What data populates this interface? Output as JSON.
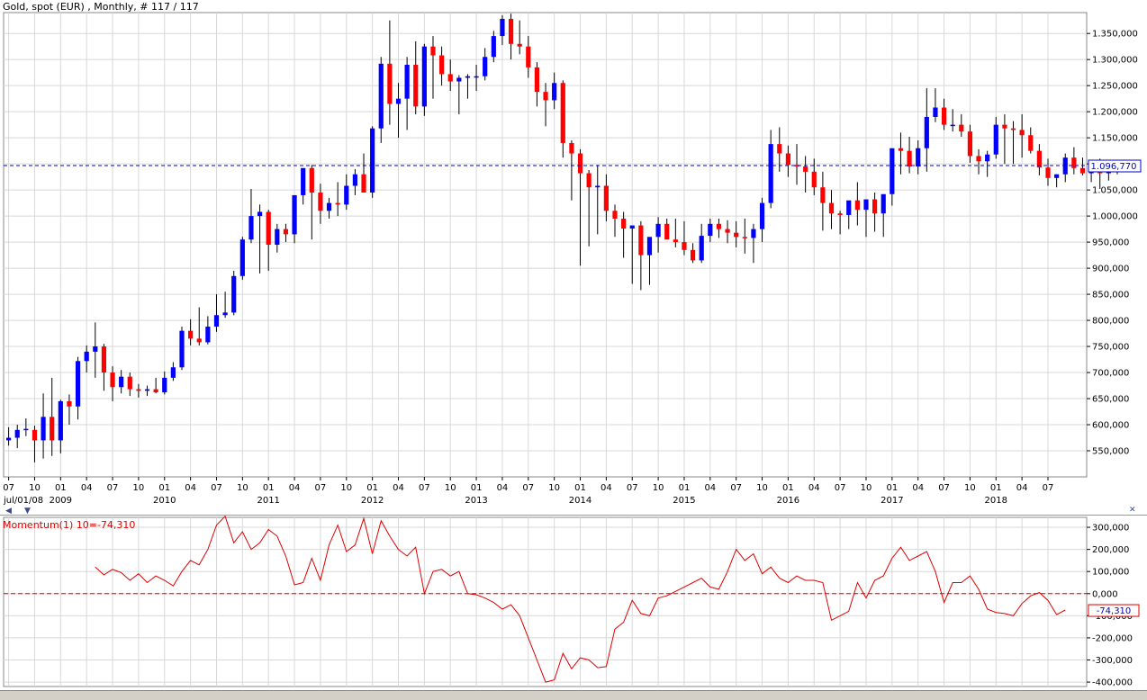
{
  "main": {
    "title": "Gold, spot (EUR) , Monthly, # 117 / 117",
    "last_price_label": "1.096,770",
    "first_date_label": "jul/01/08",
    "year_labels": [
      "2009",
      "2010",
      "2011",
      "2012",
      "2013",
      "2014",
      "2015",
      "2016",
      "2017",
      "2018"
    ],
    "month_labels": [
      "07",
      "10",
      "01",
      "04",
      "07",
      "10",
      "01",
      "04",
      "07",
      "10",
      "01",
      "04",
      "07",
      "10",
      "01",
      "04",
      "07",
      "10",
      "01",
      "04",
      "07",
      "10",
      "01",
      "04",
      "07",
      "10",
      "01",
      "04",
      "07",
      "10",
      "01",
      "04",
      "07",
      "10",
      "01",
      "04",
      "07",
      "10",
      "01",
      "04",
      "07"
    ]
  },
  "momentum": {
    "title": "Momentum(1) 10=-74,310",
    "last_value_label": "-74,310"
  },
  "colors": {
    "up": "#0000ff",
    "down": "#ff0000",
    "grid": "#d8d8d8",
    "momentum_line": "#e00000",
    "price_line": "#0000cc"
  },
  "chart_data": [
    {
      "type": "candlestick",
      "title": "Gold, spot (EUR) , Monthly, # 117 / 117",
      "ylim": [
        500000,
        1390000
      ],
      "y_ticks": [
        "550,000",
        "600,000",
        "650,000",
        "700,000",
        "750,000",
        "800,000",
        "850,000",
        "900,000",
        "950,000",
        "1.000,000",
        "1.050,000",
        "1.100,000",
        "1.150,000",
        "1.200,000",
        "1.250,000",
        "1.300,000",
        "1.350,000"
      ],
      "last_value": 1096770,
      "grid": true,
      "series": [
        {
          "ohlc": [
            [
              570,
              595,
              560,
              575
            ],
            [
              575,
              600,
              555,
              590
            ],
            [
              590,
              612,
              578,
              592
            ],
            [
              590,
              598,
              528,
              570
            ],
            [
              570,
              660,
              535,
              615
            ],
            [
              615,
              690,
              540,
              570
            ],
            [
              570,
              648,
              545,
              645
            ],
            [
              645,
              658,
              600,
              635
            ],
            [
              635,
              730,
              610,
              722
            ],
            [
              722,
              752,
              700,
              740
            ],
            [
              740,
              796,
              690,
              750
            ],
            [
              750,
              755,
              665,
              700
            ],
            [
              700,
              712,
              645,
              672
            ],
            [
              672,
              705,
              660,
              692
            ],
            [
              692,
              700,
              655,
              668
            ],
            [
              668,
              678,
              652,
              665
            ],
            [
              665,
              675,
              655,
              668
            ],
            [
              668,
              690,
              660,
              662
            ],
            [
              662,
              702,
              658,
              690
            ],
            [
              690,
              720,
              684,
              710
            ],
            [
              710,
              788,
              705,
              780
            ],
            [
              780,
              802,
              752,
              765
            ],
            [
              765,
              825,
              752,
              758
            ],
            [
              758,
              808,
              754,
              788
            ],
            [
              788,
              850,
              778,
              810
            ],
            [
              810,
              855,
              805,
              815
            ],
            [
              815,
              895,
              810,
              885
            ],
            [
              885,
              960,
              878,
              955
            ],
            [
              955,
              1052,
              948,
              1000
            ],
            [
              1000,
              1022,
              890,
              1008
            ],
            [
              1008,
              1012,
              895,
              945
            ],
            [
              945,
              985,
              930,
              975
            ],
            [
              975,
              985,
              950,
              965
            ],
            [
              965,
              1005,
              948,
              1040
            ],
            [
              1040,
              1090,
              1022,
              1092
            ],
            [
              1092,
              1098,
              955,
              1045
            ],
            [
              1045,
              1062,
              985,
              1010
            ],
            [
              1010,
              1035,
              995,
              1025
            ],
            [
              1025,
              1065,
              1000,
              1022
            ],
            [
              1022,
              1080,
              1012,
              1058
            ],
            [
              1058,
              1090,
              1040,
              1080
            ],
            [
              1080,
              1120,
              1045,
              1045
            ],
            [
              1045,
              1172,
              1035,
              1168
            ],
            [
              1168,
              1305,
              1140,
              1292
            ],
            [
              1292,
              1375,
              1175,
              1215
            ],
            [
              1215,
              1255,
              1150,
              1225
            ],
            [
              1225,
              1305,
              1165,
              1290
            ],
            [
              1290,
              1335,
              1195,
              1210
            ],
            [
              1210,
              1330,
              1192,
              1325
            ],
            [
              1325,
              1345,
              1225,
              1308
            ],
            [
              1308,
              1325,
              1250,
              1272
            ],
            [
              1272,
              1300,
              1240,
              1258
            ],
            [
              1258,
              1270,
              1195,
              1265
            ],
            [
              1265,
              1272,
              1225,
              1268
            ],
            [
              1268,
              1290,
              1240,
              1268
            ],
            [
              1268,
              1322,
              1260,
              1305
            ],
            [
              1305,
              1355,
              1295,
              1345
            ],
            [
              1345,
              1385,
              1328,
              1378
            ],
            [
              1378,
              1388,
              1300,
              1330
            ],
            [
              1330,
              1375,
              1310,
              1325
            ],
            [
              1325,
              1345,
              1265,
              1285
            ],
            [
              1285,
              1295,
              1210,
              1238
            ],
            [
              1238,
              1255,
              1172,
              1222
            ],
            [
              1222,
              1275,
              1205,
              1255
            ],
            [
              1255,
              1260,
              1112,
              1140
            ],
            [
              1140,
              1145,
              1030,
              1120
            ],
            [
              1120,
              1128,
              905,
              1082
            ],
            [
              1082,
              1088,
              942,
              1055
            ],
            [
              1055,
              1098,
              965,
              1058
            ],
            [
              1058,
              1080,
              990,
              1010
            ],
            [
              1010,
              1022,
              960,
              995
            ],
            [
              995,
              1008,
              920,
              976
            ],
            [
              976,
              980,
              870,
              982
            ],
            [
              982,
              990,
              858,
              925
            ],
            [
              925,
              945,
              868,
              960
            ],
            [
              960,
              998,
              930,
              985
            ],
            [
              985,
              995,
              960,
              955
            ],
            [
              955,
              995,
              940,
              950
            ],
            [
              950,
              990,
              925,
              935
            ],
            [
              935,
              948,
              910,
              915
            ],
            [
              915,
              985,
              910,
              962
            ],
            [
              962,
              995,
              950,
              985
            ],
            [
              985,
              995,
              958,
              975
            ],
            [
              975,
              992,
              948,
              968
            ],
            [
              968,
              990,
              940,
              960
            ],
            [
              960,
              995,
              928,
              958
            ],
            [
              958,
              985,
              910,
              975
            ],
            [
              975,
              1035,
              950,
              1025
            ],
            [
              1025,
              1165,
              1015,
              1138
            ],
            [
              1138,
              1170,
              1085,
              1120
            ],
            [
              1120,
              1135,
              1075,
              1098
            ],
            [
              1098,
              1138,
              1060,
              1095
            ],
            [
              1095,
              1115,
              1045,
              1085
            ],
            [
              1085,
              1110,
              1040,
              1055
            ],
            [
              1055,
              1085,
              972,
              1025
            ],
            [
              1025,
              1050,
              975,
              1005
            ],
            [
              1005,
              1010,
              965,
              1002
            ],
            [
              1002,
              1018,
              975,
              1030
            ],
            [
              1030,
              1065,
              982,
              1012
            ],
            [
              1012,
              1028,
              960,
              1032
            ],
            [
              1032,
              1045,
              970,
              1005
            ],
            [
              1005,
              1040,
              960,
              1042
            ],
            [
              1042,
              1072,
              1020,
              1130
            ],
            [
              1130,
              1160,
              1080,
              1125
            ],
            [
              1125,
              1152,
              1082,
              1095
            ],
            [
              1095,
              1145,
              1080,
              1130
            ],
            [
              1130,
              1245,
              1085,
              1190
            ],
            [
              1190,
              1245,
              1180,
              1208
            ],
            [
              1208,
              1225,
              1165,
              1175
            ],
            [
              1175,
              1205,
              1162,
              1175
            ],
            [
              1175,
              1195,
              1152,
              1162
            ],
            [
              1162,
              1175,
              1102,
              1115
            ],
            [
              1115,
              1128,
              1080,
              1105
            ],
            [
              1105,
              1125,
              1075,
              1118
            ],
            [
              1118,
              1190,
              1110,
              1175
            ],
            [
              1175,
              1195,
              1100,
              1168
            ],
            [
              1168,
              1182,
              1100,
              1165
            ],
            [
              1165,
              1195,
              1112,
              1155
            ],
            [
              1155,
              1170,
              1120,
              1125
            ],
            [
              1125,
              1138,
              1078,
              1093
            ],
            [
              1093,
              1110,
              1058,
              1073
            ],
            [
              1073,
              1080,
              1055,
              1080
            ],
            [
              1080,
              1120,
              1065,
              1112
            ],
            [
              1112,
              1132,
              1080,
              1092
            ],
            [
              1092,
              1112,
              1078,
              1082
            ],
            [
              1082,
              1105,
              1065,
              1100
            ],
            [
              1100,
              1110,
              1052,
              1082
            ],
            [
              1082,
              1100,
              1068,
              1088
            ],
            [
              1088,
              1102,
              1080,
              1097
            ]
          ]
        }
      ]
    },
    {
      "type": "line",
      "title": "Momentum(1) 10=-74,310",
      "ylim": [
        -420000,
        345000
      ],
      "y_ticks": [
        "300,000",
        "200,000",
        "100,000",
        "0,000",
        "-100,000",
        "-200,000",
        "-300,000",
        "-400,000"
      ],
      "zero_line": 0,
      "last_value": -74310,
      "series": [
        {
          "name": "Momentum(1) 10",
          "values": [
            null,
            null,
            null,
            null,
            null,
            null,
            null,
            null,
            null,
            null,
            120000,
            85000,
            110000,
            95000,
            60000,
            90000,
            50000,
            80000,
            60000,
            35000,
            100000,
            150000,
            130000,
            200000,
            310000,
            350000,
            230000,
            280000,
            200000,
            230000,
            290000,
            260000,
            170000,
            40000,
            50000,
            160000,
            60000,
            220000,
            310000,
            190000,
            220000,
            340000,
            180000,
            330000,
            260000,
            200000,
            170000,
            210000,
            0,
            100000,
            110000,
            80000,
            100000,
            0,
            -5000,
            -20000,
            -40000,
            -70000,
            -50000,
            -100000,
            -200000,
            -300000,
            -400000,
            -390000,
            -270000,
            -340000,
            -290000,
            -300000,
            -335000,
            -330000,
            -160000,
            -130000,
            -30000,
            -90000,
            -100000,
            -20000,
            -10000,
            10000,
            30000,
            50000,
            70000,
            30000,
            20000,
            100000,
            200000,
            150000,
            180000,
            90000,
            120000,
            70000,
            50000,
            80000,
            60000,
            60000,
            50000,
            -120000,
            -100000,
            -80000,
            50000,
            -20000,
            60000,
            80000,
            160000,
            210000,
            150000,
            170000,
            190000,
            100000,
            -40000,
            50000,
            50000,
            80000,
            20000,
            -70000,
            -85000,
            -90000,
            -100000,
            -45000,
            -10000,
            5000,
            -30000,
            -95000,
            -74310
          ]
        }
      ]
    }
  ]
}
